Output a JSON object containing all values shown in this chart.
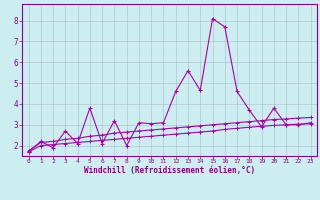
{
  "xlabel": "Windchill (Refroidissement éolien,°C)",
  "background_color": "#cceef0",
  "line_color": "#aa00aa",
  "grid_color": "#aabbcc",
  "xlim": [
    -0.5,
    23.5
  ],
  "ylim": [
    1.5,
    8.8
  ],
  "xticks": [
    0,
    1,
    2,
    3,
    4,
    5,
    6,
    7,
    8,
    9,
    10,
    11,
    12,
    13,
    14,
    15,
    16,
    17,
    18,
    19,
    20,
    21,
    22,
    23
  ],
  "yticks": [
    2,
    3,
    4,
    5,
    6,
    7,
    8
  ],
  "series1_x": [
    0,
    1,
    2,
    3,
    4,
    5,
    6,
    7,
    8,
    9,
    10,
    11,
    12,
    13,
    14,
    15,
    16,
    17,
    18,
    19,
    20,
    21,
    22,
    23
  ],
  "series1_y": [
    1.7,
    2.2,
    1.9,
    2.7,
    2.1,
    3.8,
    2.1,
    3.2,
    2.0,
    3.1,
    3.05,
    3.1,
    4.6,
    5.6,
    4.65,
    8.1,
    7.7,
    4.6,
    3.7,
    2.9,
    3.8,
    3.0,
    3.0,
    3.1
  ],
  "series2_x": [
    0,
    1,
    2,
    3,
    4,
    5,
    6,
    7,
    8,
    9,
    10,
    11,
    12,
    13,
    14,
    15,
    16,
    17,
    18,
    19,
    20,
    21,
    22,
    23
  ],
  "series2_y": [
    1.75,
    2.15,
    2.2,
    2.3,
    2.35,
    2.45,
    2.5,
    2.6,
    2.65,
    2.7,
    2.75,
    2.8,
    2.85,
    2.9,
    2.95,
    3.0,
    3.05,
    3.1,
    3.15,
    3.2,
    3.25,
    3.28,
    3.32,
    3.35
  ],
  "series3_x": [
    0,
    1,
    2,
    3,
    4,
    5,
    6,
    7,
    8,
    9,
    10,
    11,
    12,
    13,
    14,
    15,
    16,
    17,
    18,
    19,
    20,
    21,
    22,
    23
  ],
  "series3_y": [
    1.7,
    2.0,
    2.05,
    2.1,
    2.15,
    2.2,
    2.25,
    2.3,
    2.35,
    2.4,
    2.45,
    2.5,
    2.55,
    2.6,
    2.65,
    2.7,
    2.78,
    2.83,
    2.88,
    2.93,
    2.97,
    3.0,
    3.03,
    3.05
  ]
}
